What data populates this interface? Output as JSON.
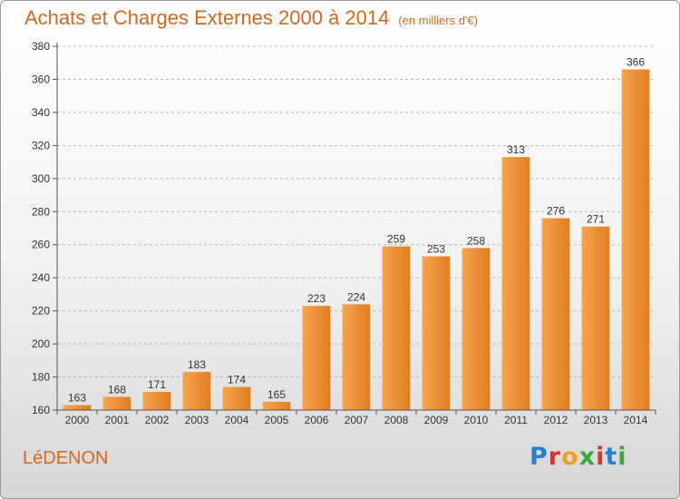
{
  "header": {
    "title": "Achats et Charges Externes 2000 à 2014",
    "subtitle": "(en milliers d'€)"
  },
  "footer": {
    "city": "LéDENON",
    "brand": "Proxiti"
  },
  "colors": {
    "title": "#d2691e",
    "bar_light": "#f7a34f",
    "bar_dark": "#e07e1f",
    "logo_letters": [
      "#2a7fd0",
      "#e0302a",
      "#f0a020",
      "#3aa83a",
      "#e0302a",
      "#2a7fd0",
      "#3aa83a"
    ]
  },
  "chart_data": {
    "type": "bar",
    "categories": [
      "2000",
      "2001",
      "2002",
      "2003",
      "2004",
      "2005",
      "2006",
      "2007",
      "2008",
      "2009",
      "2010",
      "2011",
      "2012",
      "2013",
      "2014"
    ],
    "values": [
      163,
      168,
      171,
      183,
      174,
      165,
      223,
      224,
      259,
      253,
      258,
      313,
      276,
      271,
      366
    ],
    "data_labels": [
      "163",
      "168",
      "171",
      "183",
      "174",
      "165",
      "223",
      "224",
      "259",
      "253",
      "258",
      "313",
      "276",
      "271",
      "366"
    ],
    "title": "Achats et Charges Externes 2000 à 2014",
    "subtitle": "(en milliers d'€)",
    "xlabel": "",
    "ylabel": "",
    "ylim": [
      160,
      380
    ],
    "yticks": [
      160,
      180,
      200,
      220,
      240,
      260,
      280,
      300,
      320,
      340,
      360,
      380
    ],
    "grid": "horizontal dashed",
    "legend": "none"
  }
}
